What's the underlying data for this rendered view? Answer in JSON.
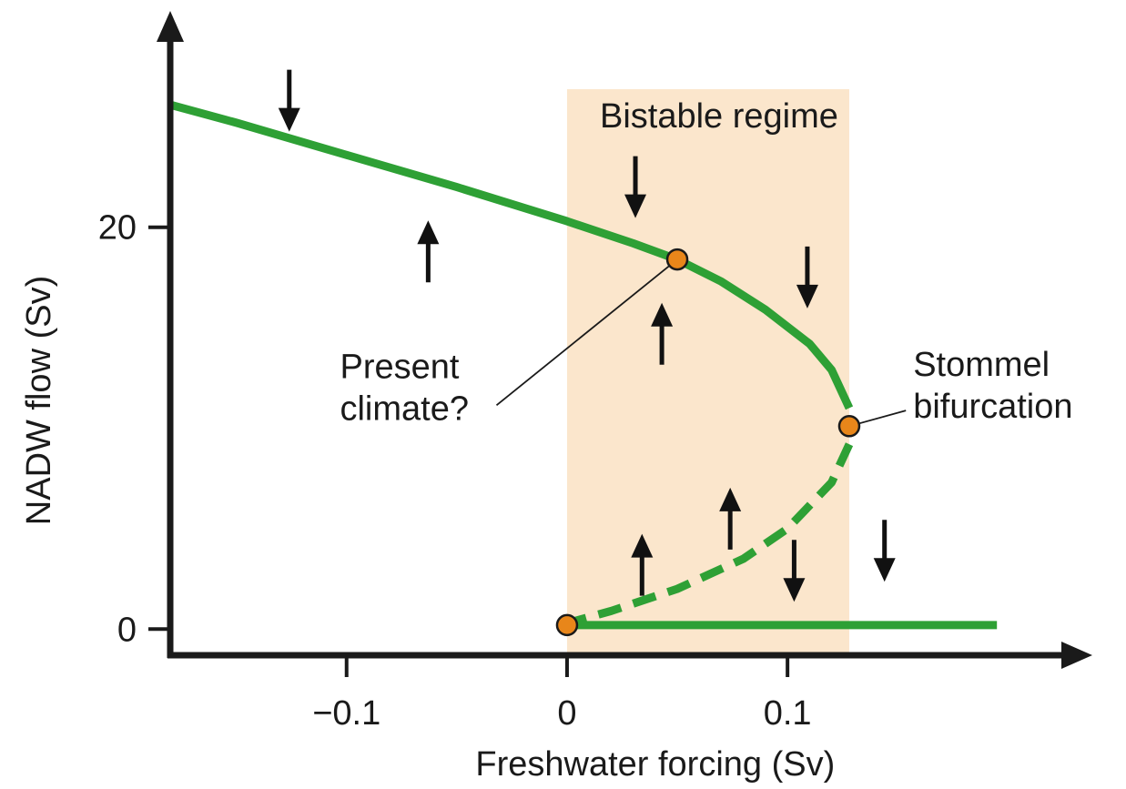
{
  "chart_data": {
    "type": "line",
    "title": "",
    "xlabel": "Freshwater forcing (Sv)",
    "ylabel": "NADW flow (Sv)",
    "xlim": [
      -0.18,
      0.23
    ],
    "ylim": [
      -1.3,
      29.5
    ],
    "x_ticks": [
      {
        "value": -0.1,
        "label": "−0.1"
      },
      {
        "value": 0,
        "label": "0"
      },
      {
        "value": 0.1,
        "label": "0.1"
      }
    ],
    "y_ticks": [
      {
        "value": 0,
        "label": "0"
      },
      {
        "value": 20,
        "label": "20"
      }
    ],
    "bistable_region": {
      "label": "Bistable regime",
      "x_start": 0,
      "x_end": 0.128,
      "color": "#fbe6cc"
    },
    "series": [
      {
        "role": "upper-stable-branch",
        "style": "solid",
        "color": "#2ea035",
        "points": [
          [
            -0.18,
            26.1
          ],
          [
            -0.15,
            25.2
          ],
          [
            -0.1,
            23.6
          ],
          [
            -0.05,
            22.0
          ],
          [
            0,
            20.3
          ],
          [
            0.03,
            19.2
          ],
          [
            0.05,
            18.4
          ],
          [
            0.07,
            17.3
          ],
          [
            0.09,
            15.9
          ],
          [
            0.11,
            14.2
          ],
          [
            0.12,
            12.9
          ],
          [
            0.128,
            11.0
          ]
        ]
      },
      {
        "role": "unstable-branch",
        "style": "dashed",
        "color": "#2ea035",
        "points": [
          [
            0.128,
            9.2
          ],
          [
            0.12,
            7.3
          ],
          [
            0.1,
            5.0
          ],
          [
            0.08,
            3.5
          ],
          [
            0.05,
            2.0
          ],
          [
            0.02,
            0.9
          ],
          [
            0,
            0.3
          ]
        ]
      },
      {
        "role": "lower-stable-branch",
        "style": "solid",
        "color": "#2ea035",
        "points": [
          [
            0,
            0.2
          ],
          [
            0.195,
            0.2
          ]
        ]
      }
    ],
    "markers": [
      {
        "name": "present-climate",
        "x": 0.05,
        "y": 18.4,
        "color": "#e8861a"
      },
      {
        "name": "stommel-bifurcation",
        "x": 0.128,
        "y": 10.1,
        "color": "#e8861a"
      },
      {
        "name": "off-state",
        "x": 0,
        "y": 0.2,
        "color": "#e8861a"
      }
    ],
    "annotations": [
      {
        "name": "present-climate-label",
        "lines": [
          "Present",
          "climate?"
        ],
        "at": [
          -0.103,
          12.5
        ],
        "points_to": [
          0.05,
          18.4
        ]
      },
      {
        "name": "stommel-label",
        "lines": [
          "Stommel",
          "bifurcation"
        ],
        "at": [
          0.157,
          12.6
        ],
        "points_to": [
          0.128,
          10.1
        ]
      }
    ],
    "flow_arrows": [
      {
        "x": -0.126,
        "y": 26.3,
        "direction": "down"
      },
      {
        "x": -0.063,
        "y": 18.8,
        "direction": "up"
      },
      {
        "x": 0.031,
        "y": 22.0,
        "direction": "down"
      },
      {
        "x": 0.043,
        "y": 14.7,
        "direction": "up"
      },
      {
        "x": 0.109,
        "y": 17.5,
        "direction": "down"
      },
      {
        "x": 0.074,
        "y": 5.5,
        "direction": "up"
      },
      {
        "x": 0.034,
        "y": 3.2,
        "direction": "up"
      },
      {
        "x": 0.103,
        "y": 2.9,
        "direction": "down"
      },
      {
        "x": 0.144,
        "y": 3.9,
        "direction": "down"
      }
    ],
    "grid": false,
    "legend": "none"
  }
}
